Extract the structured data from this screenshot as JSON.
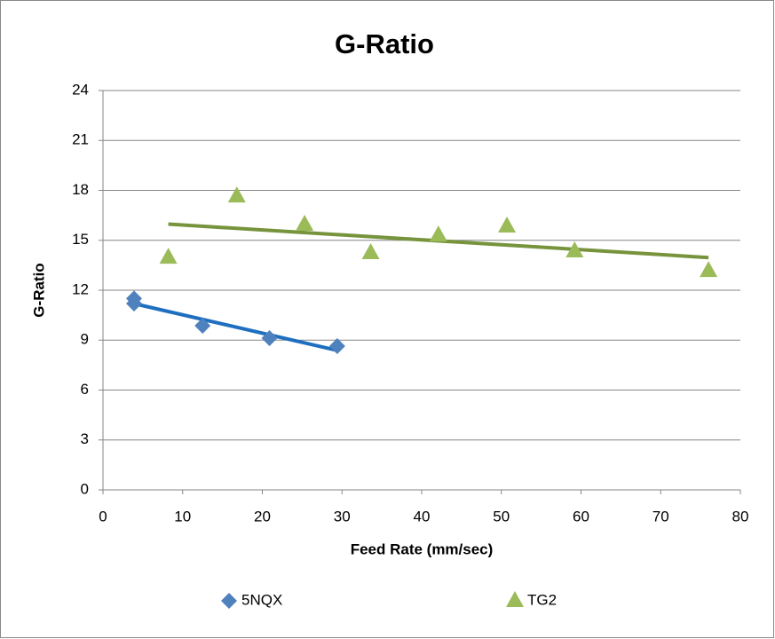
{
  "chart_data": {
    "type": "scatter",
    "title": "G-Ratio",
    "x_label": "Feed Rate (mm/sec)",
    "y_label": "G-Ratio",
    "series": [
      {
        "name": "5NQX",
        "color": "#4f81bd",
        "marker": "diamond",
        "trendline": "linear",
        "trendline_color": "#1f6fc0",
        "x": [
          3.9,
          3.9,
          12.5,
          20.9,
          29.4
        ],
        "values": [
          11.5,
          11.2,
          9.87,
          9.12,
          8.64
        ]
      },
      {
        "name": "TG2",
        "color": "#9bbb59",
        "marker": "triangle",
        "trendline": "linear",
        "trendline_color": "#77933c",
        "x": [
          8.2,
          16.8,
          25.3,
          33.6,
          42.1,
          50.7,
          59.2,
          76.0
        ],
        "values": [
          13.97,
          17.65,
          15.95,
          14.24,
          15.3,
          15.84,
          14.35,
          13.17
        ]
      }
    ],
    "xlim": [
      0,
      80
    ],
    "xticks": [
      0,
      10,
      20,
      30,
      40,
      50,
      60,
      70,
      80
    ],
    "ylim": [
      0,
      24
    ],
    "yticks": [
      0,
      3,
      6,
      9,
      12,
      15,
      18,
      21,
      24
    ],
    "grid": true,
    "legend": "bottom"
  }
}
